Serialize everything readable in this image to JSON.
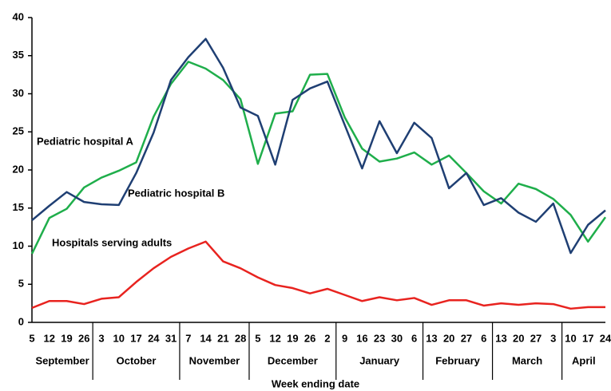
{
  "chart_data": {
    "type": "line",
    "categories": [
      "5",
      "12",
      "19",
      "26",
      "3",
      "10",
      "17",
      "24",
      "31",
      "7",
      "14",
      "21",
      "28",
      "5",
      "12",
      "19",
      "26",
      "2",
      "9",
      "16",
      "23",
      "30",
      "6",
      "13",
      "20",
      "27",
      "6",
      "13",
      "20",
      "27",
      "3",
      "10",
      "17",
      "24"
    ],
    "month_labels": [
      "September",
      "October",
      "November",
      "December",
      "January",
      "February",
      "March",
      "April"
    ],
    "x_label": "Week ending date",
    "series": [
      {
        "name": "Pediatric hospital A",
        "color": "#1fae4b",
        "values": [
          9,
          13.7,
          14.9,
          17.7,
          19,
          19.9,
          21,
          27,
          31.3,
          34.2,
          33.3,
          31.8,
          29.3,
          20.8,
          27.4,
          27.7,
          32.5,
          32.6,
          26.9,
          22.8,
          21.1,
          21.5,
          22.3,
          20.7,
          21.9,
          19.6,
          17.2,
          15.6,
          18.2,
          17.5,
          16.2,
          14.1,
          10.6,
          13.8
        ]
      },
      {
        "name": "Pediatric hospital B",
        "color": "#1f3f73",
        "values": [
          13.4,
          15.3,
          17.1,
          15.8,
          15.5,
          15.4,
          19.6,
          24.9,
          31.8,
          34.8,
          37.2,
          33.4,
          28.2,
          27.1,
          20.7,
          29.2,
          30.7,
          31.6,
          25.9,
          20.2,
          26.4,
          22.2,
          26.2,
          24.2,
          17.6,
          19.6,
          15.4,
          16.3,
          14.4,
          13.2,
          15.6,
          9.1,
          12.8,
          14.7
        ]
      },
      {
        "name": "Hospitals serving adults",
        "color": "#e8231f",
        "values": [
          1.9,
          2.8,
          2.8,
          2.4,
          3.1,
          3.3,
          5.3,
          7.1,
          8.6,
          9.7,
          10.6,
          8.0,
          7.1,
          5.9,
          4.9,
          4.5,
          3.8,
          4.4,
          3.6,
          2.8,
          3.3,
          2.9,
          3.2,
          2.3,
          2.9,
          2.9,
          2.2,
          2.5,
          2.3,
          2.5,
          2.4,
          1.8,
          2.0,
          2.0
        ]
      }
    ],
    "ylim": [
      0,
      40
    ],
    "yticks": [
      0,
      5,
      10,
      15,
      20,
      25,
      30,
      35,
      40
    ]
  }
}
